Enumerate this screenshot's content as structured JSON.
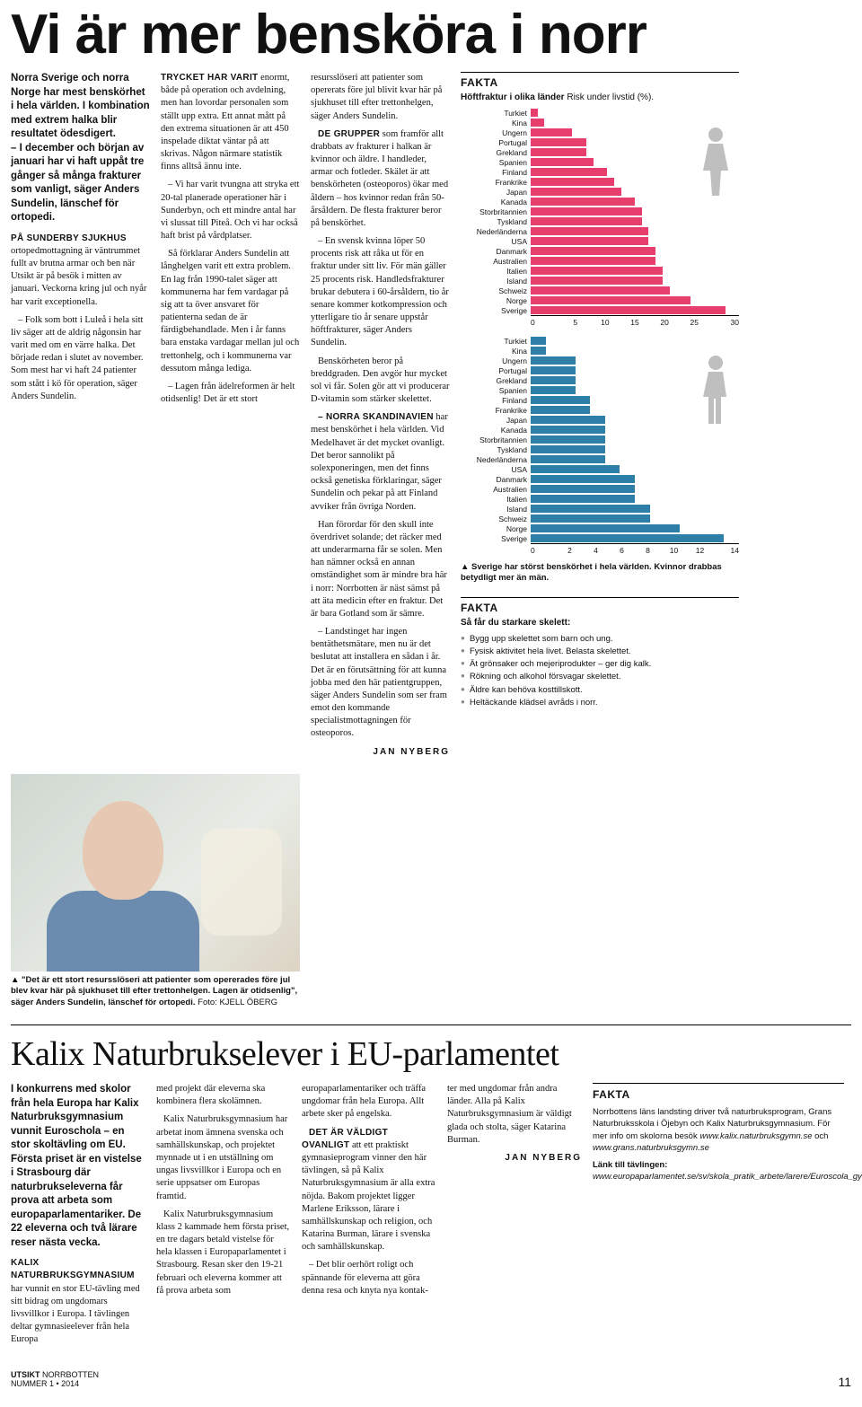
{
  "article1": {
    "headline": "Vi är mer bensköra i norr",
    "intro": "Norra Sverige och norra Norge har mest benskörhet i hela världen. I kombination med extrem halka blir resultatet ödesdigert.\n– I december och början av januari har vi haft uppåt tre gånger så många frakturer som vanligt, säger Anders Sundelin, länschef för ortopedi.",
    "col1": {
      "runin": "PÅ SUNDERBY SJUKHUS",
      "p1": " ortopedmottagning är väntrummet fullt av brutna armar och ben när Utsikt är på besök i mitten av januari. Veckorna kring jul och nyår har varit exceptionella.",
      "p2": "– Folk som bott i Luleå i hela sitt liv säger att de aldrig någonsin har varit med om en värre halka. Det började redan i slutet av november. Som mest har vi haft 24 patienter som stått i kö för operation, säger Anders Sundelin."
    },
    "col2": {
      "runin": "TRYCKET HAR VARIT",
      "p1": " enormt, både på operation och avdelning, men han lovordar personalen som ställt upp extra. Ett annat mått på den extrema situationen är att 450 inspelade diktat väntar på att skrivas. Någon närmare statistik finns alltså ännu inte.",
      "p2": "– Vi har varit tvungna att stryka ett 20-tal planerade operationer här i Sunderbyn, och ett mindre antal har vi slussat till Piteå. Och vi har också haft brist på vårdplatser.",
      "p3": "Så förklarar Anders Sundelin att långhelgen varit ett extra problem. En lag från 1990-talet säger att kommunerna har fem vardagar på sig att ta över ansvaret för patienterna sedan de är färdigbehandlade. Men i år fanns bara enstaka vardagar mellan jul och trettonhelg, och i kommunerna var dessutom många lediga.",
      "p4": "– Lagen från ädelreformen är helt otidsenlig! Det är ett stort"
    },
    "col3": {
      "p1": "resursslöseri att patienter som opererats före jul blivit kvar här på sjukhuset till efter trettonhelgen, säger Anders Sundelin.",
      "runin2": "DE GRUPPER",
      "p2": " som framför allt drabbats av frakturer i halkan är kvinnor och äldre. I handleder, armar och fotleder. Skälet är att benskörheten (osteoporos) ökar med åldern – hos kvinnor redan från 50-årsåldern. De flesta frakturer beror på benskörhet.",
      "p3": "– En svensk kvinna löper 50 procents risk att råka ut för en fraktur under sitt liv. För män gäller 25 procents risk. Handledsfrakturer brukar debutera i 60-årsåldern, tio år senare kommer kotkompression och ytterligare tio år senare uppstår höftfrakturer, säger Anders Sundelin.",
      "p4": "Benskörheten beror på breddgraden. Den avgör hur mycket sol vi får. Solen gör att vi producerar D-vitamin som stärker skelettet.",
      "runin3": "– NORRA SKANDINAVIEN",
      "p5": " har mest benskörhet i hela världen. Vid Medelhavet är det mycket ovanligt. Det beror sannolikt på solexponeringen, men det finns också genetiska förklaringar, säger Sundelin och pekar på att Finland avviker från övriga Norden.",
      "p6": "Han förordar för den skull inte överdrivet solande; det räcker med att underarmarna får se solen. Men han nämner också en annan omständighet som är mindre bra här i norr: Norrbotten är näst sämst på att äta medicin efter en fraktur. Det är bara Gotland som är sämre.",
      "p7": "– Landstinget har ingen bentäthetsmätare, men nu är det beslutat att installera en sådan i år. Det är en förutsättning för att kunna jobba med den här patientgruppen, säger Anders Sundelin som ser fram emot den kommande specialistmottagningen för osteoporos."
    },
    "byline": "JAN NYBERG",
    "caption": "\"Det är ett stort resursslöseri att patienter som opererades före jul blev kvar här på sjukhuset till efter trettonhelgen. Lagen är otidsenlig\", säger Anders Sundelin, länschef för ortopedi.",
    "photo_credit": "Foto: KJELL ÖBERG"
  },
  "fakta1": {
    "head": "FAKTA",
    "sub_bold": "Höftfraktur i olika länder",
    "sub_rest": " Risk under livstid (%).",
    "countries": [
      "Turkiet",
      "Kina",
      "Ungern",
      "Portugal",
      "Grekland",
      "Spanien",
      "Finland",
      "Frankrike",
      "Japan",
      "Kanada",
      "Storbritannien",
      "Tyskland",
      "Nederländerna",
      "USA",
      "Danmark",
      "Australien",
      "Italien",
      "Island",
      "Schweiz",
      "Norge",
      "Sverige"
    ],
    "women_values": [
      1,
      2,
      6,
      8,
      8,
      9,
      11,
      12,
      13,
      15,
      16,
      16,
      17,
      17,
      18,
      18,
      19,
      19,
      20,
      23,
      28
    ],
    "women_max": 30,
    "women_ticks": [
      0,
      5,
      10,
      15,
      20,
      25,
      30
    ],
    "women_color": "#e73e6e",
    "men_values": [
      1,
      1,
      3,
      3,
      3,
      3,
      4,
      4,
      5,
      5,
      5,
      5,
      5,
      6,
      7,
      7,
      7,
      8,
      8,
      10,
      13
    ],
    "men_max": 14,
    "men_ticks": [
      0,
      2,
      4,
      6,
      8,
      10,
      12,
      14
    ],
    "men_color": "#2e7fa8",
    "chart_caption": "Sverige har störst benskörhet i hela världen. Kvinnor drabbas betydligt mer än män."
  },
  "fakta2": {
    "head": "FAKTA",
    "sub": "Så får du starkare skelett:",
    "bullets": [
      "Bygg upp skelettet som barn och ung.",
      "Fysisk aktivitet hela livet. Belasta skelettet.",
      "Ät grönsaker och mejeriprodukter – ger dig kalk.",
      "Rökning och alkohol försvagar skelettet.",
      "Äldre kan behöva kosttillskott.",
      "Heltäckande klädsel avråds i norr."
    ]
  },
  "article2": {
    "headline": "Kalix Naturbrukselever i EU-parlamentet",
    "intro": "I konkurrens med skolor från hela Europa har Kalix Naturbruksgymnasium vunnit Euroschola – en stor skoltävling om EU. Första priset är en vistelse i Strasbourg där naturbrukseleverna får prova att arbeta som europaparlamentariker. De 22 eleverna och två lärare reser nästa vecka.",
    "col1": {
      "runin": "KALIX NATURBRUKSGYMNASIUM",
      "p1": " har vunnit en stor EU-tävling med sitt bidrag om ungdomars livsvillkor i Europa. I tävlingen deltar gymnasieelever från hela Europa"
    },
    "col2": {
      "p1": "med projekt där eleverna ska kombinera flera skolämnen.",
      "p2": "Kalix Naturbruksgymnasium har arbetat inom ämnena svenska och samhällskunskap, och projektet mynnade ut i en utställning om ungas livsvillkor i Europa och en serie uppsatser om Europas framtid.",
      "p3": "Kalix Naturbruksgymnasium klass 2 kammade hem första priset, en tre dagars betald vistelse för hela klassen i Europaparlamentet i Strasbourg. Resan sker den 19-21 februari och eleverna kommer att få prova arbeta som"
    },
    "col3": {
      "p1": "europaparlamentariker och träffa ungdomar från hela Europa. Allt arbete sker på engelska.",
      "runin": "DET ÄR VÄLDIGT OVANLIGT",
      "p2": " att ett praktiskt gymnasieprogram vinner den här tävlingen, så på Kalix Naturbruksgymnasium är alla extra nöjda. Bakom projektet ligger Marlene Eriksson, lärare i samhällskunskap och religion, och Katarina Burman, lärare i svenska och samhällskunskap.",
      "p3": "– Det blir oerhört roligt och spännande för eleverna att göra denna resa och knyta nya kontak-"
    },
    "col4": {
      "p1": "ter med ungdomar från andra länder. Alla på Kalix Naturbruksgymnasium är väldigt glada och stolta, säger Katarina Burman."
    },
    "byline": "JAN NYBERG"
  },
  "fakta3": {
    "head": "FAKTA",
    "p1a": "Norrbottens läns landsting driver två naturbruksprogram, Grans Naturbruksskola i Öjebyn och Kalix Naturbruksgymnasium. För mer info om skolorna besök ",
    "p1b": "www.kalix.naturbruksgymn.se",
    "p1c": " och ",
    "p1d": "www.grans.naturbruksgymn.se",
    "p2a": "Länk till tävlingen:",
    "p2b": "www.europaparlamentet.se/sv/skola_pratik_arbete/larere/Euroscola_gymnasiet.html"
  },
  "footer": {
    "mag1": "UTSIKT",
    "mag2": " NORRBOTTEN",
    "mag3": "NUMMER 1 • 2014",
    "page": "11"
  }
}
